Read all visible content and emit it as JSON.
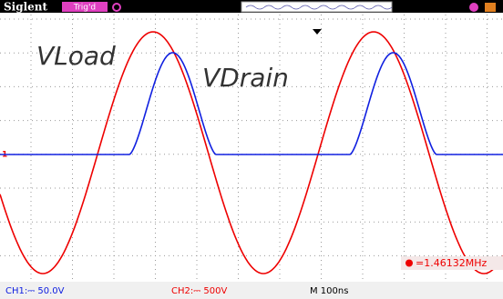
{
  "header": {
    "brand": "Siglent",
    "status": "Trig'd"
  },
  "labels": {
    "load": "VLoad",
    "drain": "VDrain"
  },
  "measurement": "=1.46132MHz",
  "footer": {
    "ch1": "CH1:⎓ 50.0V",
    "ch2": "CH2:⎓ 500V",
    "timebase": "M 100ns"
  }
}
